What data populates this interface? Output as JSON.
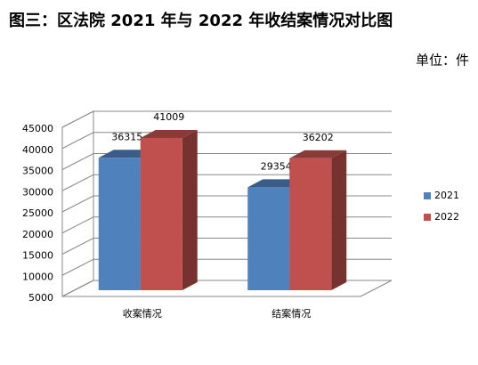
{
  "chart_data": {
    "type": "bar3d",
    "title": "图三：区法院 2021 年与 2022 年收结案情况对比图",
    "unit": "单位：件",
    "categories": [
      "收案情况",
      "结案情况"
    ],
    "series": [
      {
        "name": "2021",
        "color": "#4f81bd",
        "values": [
          36315,
          29354
        ]
      },
      {
        "name": "2022",
        "color": "#c0504d",
        "values": [
          41009,
          36202
        ]
      }
    ],
    "ylim": [
      5000,
      45000
    ],
    "yticks": [
      5000,
      10000,
      15000,
      20000,
      25000,
      30000,
      35000,
      40000,
      45000
    ],
    "grid": true,
    "legend": "right"
  }
}
